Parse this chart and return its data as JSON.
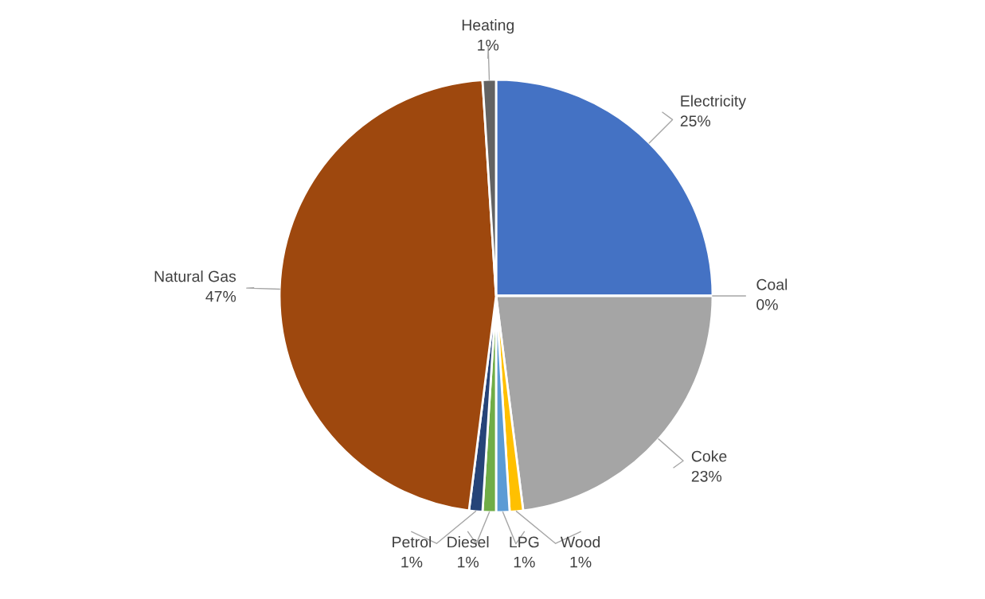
{
  "chart_data": {
    "type": "pie",
    "categories": [
      "Electricity",
      "Coal",
      "Coke",
      "Wood",
      "LPG",
      "Diesel",
      "Petrol",
      "Natural Gas",
      "Heating"
    ],
    "values": [
      25,
      0,
      23,
      1,
      1,
      1,
      1,
      47,
      1
    ],
    "value_labels": [
      "25%",
      "0%",
      "23%",
      "1%",
      "1%",
      "1%",
      "1%",
      "47%",
      "1%"
    ],
    "colors": [
      "#4472c4",
      "#ed7d31",
      "#a5a5a5",
      "#ffc000",
      "#5b9bd5",
      "#70ad47",
      "#264478",
      "#9e480e",
      "#636363"
    ]
  }
}
